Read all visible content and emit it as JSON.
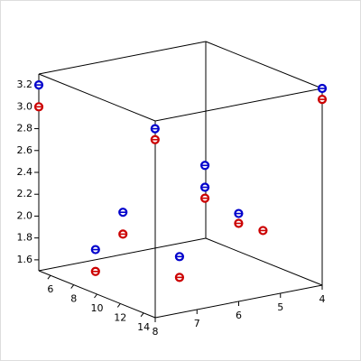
{
  "chart_data": {
    "type": "scatter3d",
    "xlim": [
      5,
      15
    ],
    "xticks": [
      6,
      8,
      10,
      12,
      14
    ],
    "ylim": [
      4,
      8
    ],
    "yticks": [
      4,
      5,
      6,
      7,
      8
    ],
    "zlim": [
      1.5,
      3.3
    ],
    "zticks": [
      1.6,
      1.8,
      {
        "value": 2,
        "label": "2.0"
      },
      2.2,
      2.4,
      2.6,
      2.8,
      {
        "value": 3,
        "label": "3.0"
      },
      3.2
    ],
    "series": [
      {
        "color": "#0000cc",
        "x": [
          5,
          11.4,
          15,
          12.1,
          12.1,
          9,
          7,
          13.5,
          13.2
        ],
        "y": [
          8,
          7,
          4,
          6,
          6,
          7.1,
          7.2,
          7,
          5.5
        ],
        "z": [
          3.2,
          3.0,
          3.3,
          2.62,
          2.42,
          2.14,
          1.72,
          1.92,
          2.19
        ]
      },
      {
        "color": "#cc0000",
        "x": [
          5,
          11.4,
          15,
          12.1,
          9,
          7,
          13.5,
          13.2,
          13.5
        ],
        "y": [
          8,
          7,
          4,
          6,
          7.1,
          7.2,
          7,
          5.5,
          5
        ],
        "z": [
          3.0,
          2.9,
          3.2,
          2.32,
          1.94,
          1.52,
          1.73,
          2.1,
          2.01
        ]
      }
    ]
  }
}
